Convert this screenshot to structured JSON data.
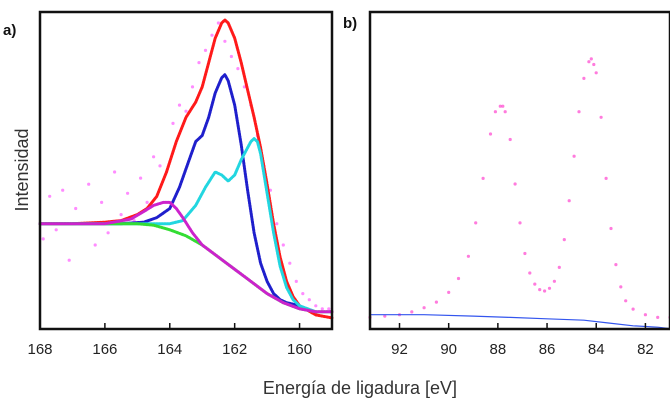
{
  "figure": {
    "ylabel": "Intensidad",
    "xlabel": "Energía de ligadura [eV]"
  },
  "chart_data": [
    {
      "panel": "a)",
      "type": "scatter",
      "x_range": [
        168,
        159
      ],
      "x_ticks": [
        "168",
        "166",
        "164",
        "162",
        "160"
      ],
      "y_range": [
        0,
        1
      ],
      "series": [
        {
          "style": "points",
          "color": "#ff66ff",
          "x": [
            167.9,
            167.7,
            167.5,
            167.3,
            167.1,
            166.9,
            166.7,
            166.5,
            166.3,
            166.1,
            165.9,
            165.7,
            165.5,
            165.3,
            165.1,
            164.9,
            164.7,
            164.5,
            164.3,
            164.1,
            163.9,
            163.7,
            163.5,
            163.3,
            163.1,
            162.9,
            162.7,
            162.5,
            162.3,
            162.1,
            161.9,
            161.7,
            161.5,
            161.3,
            161.1,
            160.9,
            160.7,
            160.5,
            160.3,
            160.1,
            159.9,
            159.7,
            159.5,
            159.3,
            159.1
          ],
          "y": [
            0.28,
            0.42,
            0.31,
            0.44,
            0.21,
            0.38,
            0.33,
            0.46,
            0.26,
            0.4,
            0.3,
            0.5,
            0.36,
            0.43,
            0.34,
            0.48,
            0.4,
            0.55,
            0.52,
            0.5,
            0.66,
            0.72,
            0.7,
            0.78,
            0.86,
            0.9,
            0.95,
            0.99,
            0.93,
            0.88,
            0.84,
            0.78,
            0.72,
            0.62,
            0.52,
            0.44,
            0.33,
            0.26,
            0.2,
            0.14,
            0.1,
            0.08,
            0.06,
            0.05,
            0.05
          ]
        },
        {
          "name": "",
          "style": "line",
          "color": "#ff1a1a",
          "x": [
            168,
            167,
            166,
            165.5,
            165,
            164.7,
            164.4,
            164.1,
            163.8,
            163.5,
            163.2,
            163.0,
            162.8,
            162.6,
            162.4,
            162.3,
            162.2,
            162.0,
            161.8,
            161.6,
            161.4,
            161.2,
            161.0,
            160.8,
            160.6,
            160.4,
            160.2,
            160.0,
            159.5,
            159.0
          ],
          "y": [
            0.33,
            0.33,
            0.335,
            0.34,
            0.36,
            0.38,
            0.42,
            0.5,
            0.6,
            0.68,
            0.73,
            0.78,
            0.86,
            0.94,
            0.99,
            1.0,
            0.99,
            0.94,
            0.86,
            0.77,
            0.68,
            0.58,
            0.46,
            0.33,
            0.22,
            0.14,
            0.09,
            0.06,
            0.03,
            0.02
          ]
        },
        {
          "name": "",
          "style": "line",
          "color": "#1f1fcc",
          "x": [
            168,
            165.5,
            164.8,
            164.4,
            164.0,
            163.7,
            163.4,
            163.2,
            163.0,
            162.8,
            162.6,
            162.4,
            162.3,
            162.2,
            162.0,
            161.8,
            161.6,
            161.4,
            161.2,
            161.0,
            160.8,
            160.6,
            160.4,
            160.2,
            160.0
          ],
          "y": [
            0.33,
            0.33,
            0.335,
            0.35,
            0.38,
            0.45,
            0.54,
            0.6,
            0.62,
            0.68,
            0.76,
            0.81,
            0.82,
            0.8,
            0.72,
            0.59,
            0.44,
            0.3,
            0.2,
            0.14,
            0.1,
            0.08,
            0.07,
            0.065,
            0.06
          ]
        },
        {
          "name": "",
          "style": "line",
          "color": "#22d6e0",
          "x": [
            168,
            166,
            164,
            163.6,
            163.2,
            162.9,
            162.6,
            162.4,
            162.2,
            162.0,
            161.8,
            161.6,
            161.5,
            161.4,
            161.3,
            161.2,
            161.0,
            160.8,
            160.6,
            160.4,
            160.2,
            160.0,
            159.5
          ],
          "y": [
            0.33,
            0.33,
            0.33,
            0.34,
            0.39,
            0.45,
            0.5,
            0.49,
            0.47,
            0.49,
            0.54,
            0.58,
            0.6,
            0.61,
            0.6,
            0.56,
            0.43,
            0.3,
            0.19,
            0.12,
            0.08,
            0.06,
            0.04
          ]
        },
        {
          "name": "",
          "style": "line",
          "color": "#33dd33",
          "x": [
            168,
            166,
            165,
            164.5,
            164,
            163.5,
            163,
            162.5,
            162,
            161.5,
            161,
            160.5,
            160,
            159.5,
            159
          ],
          "y": [
            0.33,
            0.33,
            0.33,
            0.325,
            0.31,
            0.29,
            0.26,
            0.22,
            0.18,
            0.14,
            0.1,
            0.07,
            0.05,
            0.04,
            0.04
          ]
        },
        {
          "name": "",
          "style": "line",
          "color": "#cc22cc",
          "x": [
            168,
            166,
            165.2,
            164.8,
            164.5,
            164.2,
            164.0,
            163.8,
            163.6,
            163.3,
            163.0,
            162.5,
            162.0,
            161.5,
            161.0,
            160.5,
            160.0,
            159.5,
            159
          ],
          "y": [
            0.33,
            0.33,
            0.345,
            0.37,
            0.39,
            0.4,
            0.4,
            0.38,
            0.35,
            0.3,
            0.26,
            0.22,
            0.18,
            0.14,
            0.1,
            0.07,
            0.05,
            0.04,
            0.04
          ]
        }
      ]
    },
    {
      "panel": "b)",
      "type": "scatter",
      "x_range": [
        93.2,
        81.0
      ],
      "x_ticks": [
        "92",
        "90",
        "88",
        "86",
        "84",
        "82"
      ],
      "y_range": [
        0,
        1
      ],
      "series": [
        {
          "style": "points",
          "color": "#ff4fd1",
          "x": [
            93.2,
            92.6,
            92.0,
            91.5,
            91.0,
            90.5,
            90.0,
            89.6,
            89.2,
            88.9,
            88.6,
            88.3,
            88.1,
            87.9,
            87.8,
            87.7,
            87.5,
            87.3,
            87.1,
            86.9,
            86.7,
            86.5,
            86.3,
            86.1,
            85.9,
            85.7,
            85.5,
            85.3,
            85.1,
            84.9,
            84.7,
            84.5,
            84.3,
            84.2,
            84.1,
            84.0,
            83.8,
            83.6,
            83.4,
            83.2,
            83.0,
            82.8,
            82.5,
            82.0,
            81.5,
            81.0
          ],
          "y": [
            0.02,
            0.025,
            0.03,
            0.04,
            0.055,
            0.075,
            0.11,
            0.16,
            0.24,
            0.36,
            0.52,
            0.68,
            0.76,
            0.78,
            0.78,
            0.76,
            0.66,
            0.5,
            0.36,
            0.25,
            0.18,
            0.14,
            0.12,
            0.115,
            0.125,
            0.15,
            0.2,
            0.3,
            0.44,
            0.6,
            0.76,
            0.88,
            0.94,
            0.95,
            0.93,
            0.9,
            0.74,
            0.52,
            0.34,
            0.21,
            0.13,
            0.08,
            0.05,
            0.03,
            0.02,
            0.02
          ]
        },
        {
          "name": "",
          "style": "line",
          "color": "#3355ee",
          "x": [
            93.2,
            91,
            89,
            87.5,
            86,
            84.5,
            83.5,
            82.5,
            81.5,
            81.0
          ],
          "y": [
            0.03,
            0.03,
            0.025,
            0.02,
            0.015,
            0.01,
            0.0,
            -0.01,
            -0.015,
            -0.02
          ]
        }
      ]
    }
  ]
}
